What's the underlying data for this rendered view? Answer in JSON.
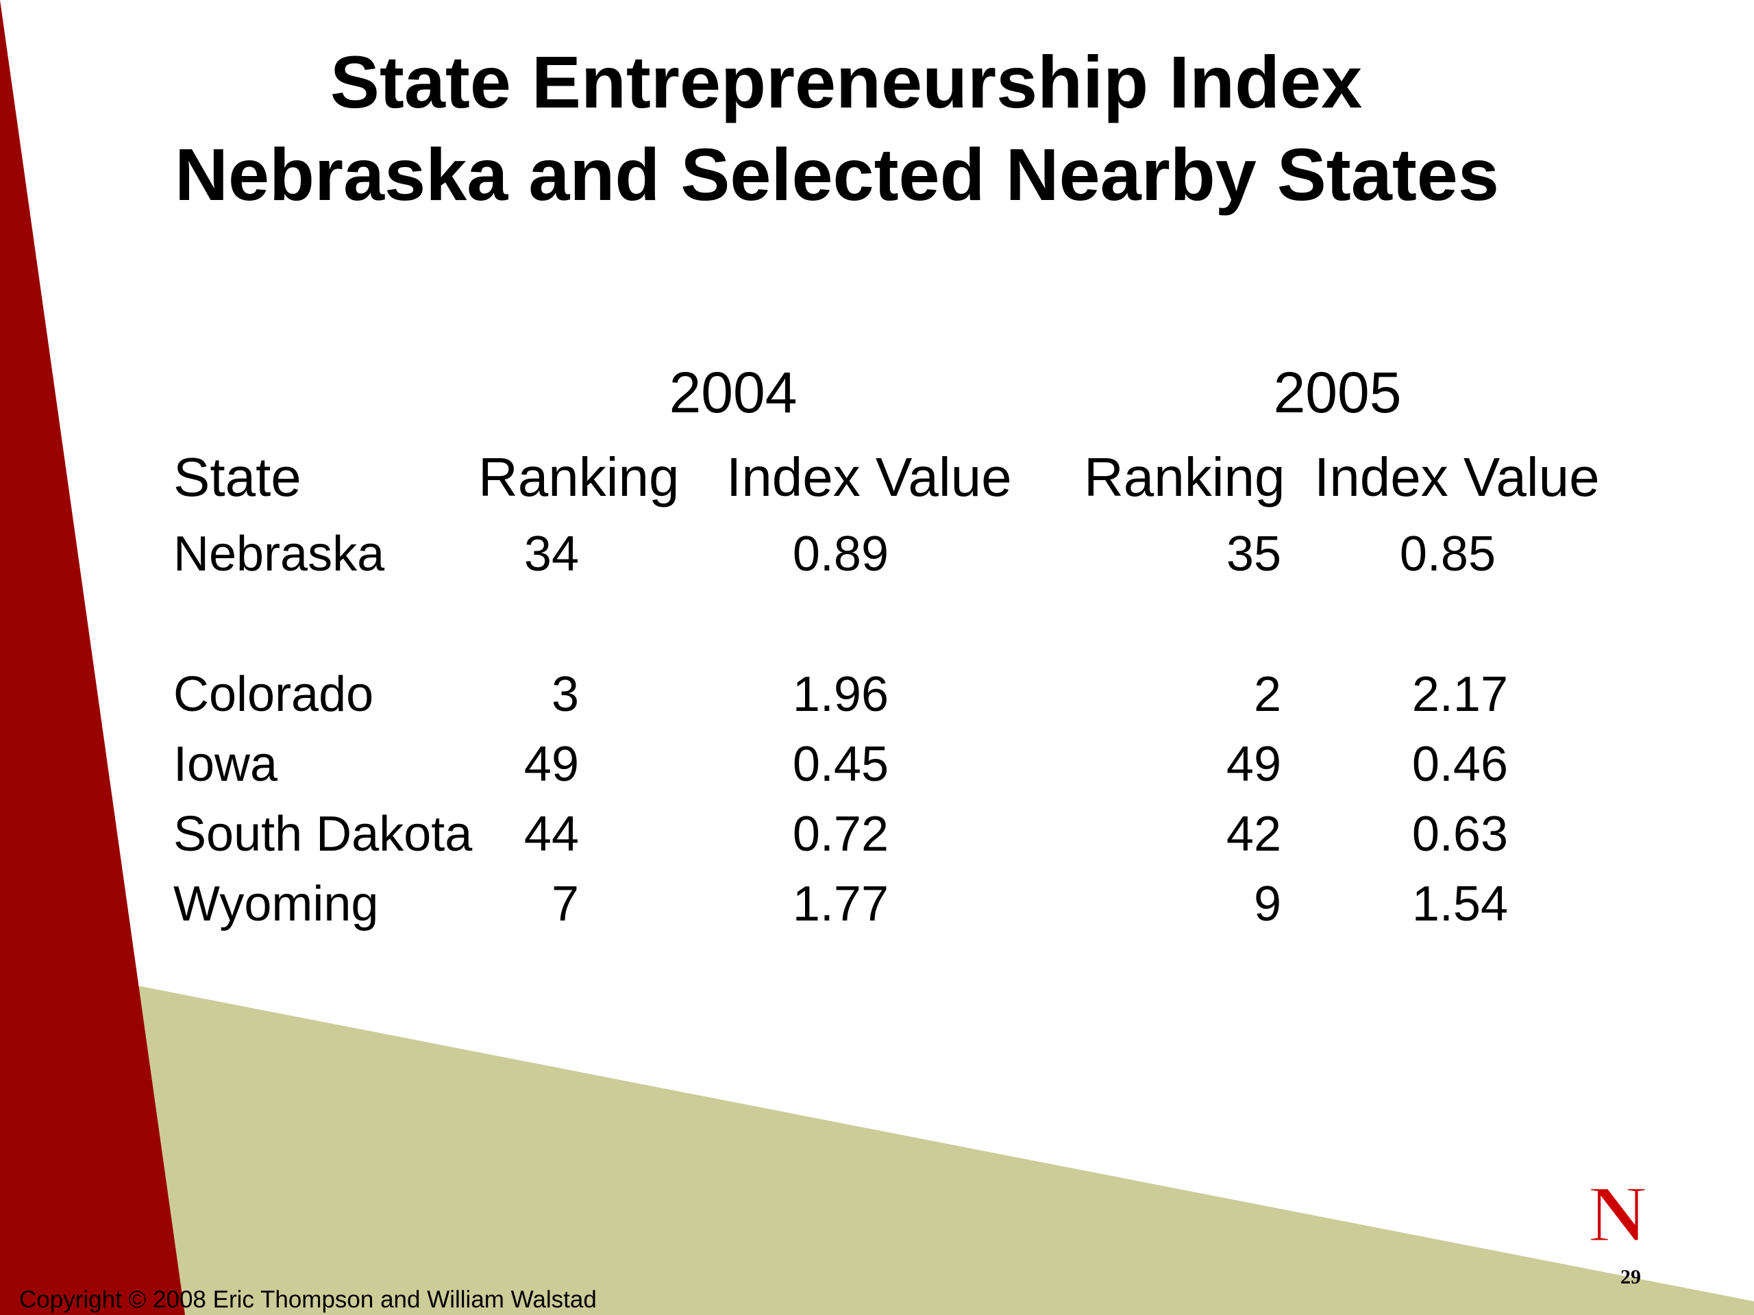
{
  "slide": {
    "title_line1": "State Entrepreneurship Index",
    "title_line2": "Nebraska and Selected Nearby States",
    "table": {
      "year_headers": [
        "2004",
        "2005"
      ],
      "column_headers": {
        "state": "State",
        "ranking_2004": "Ranking",
        "index_2004": "Index Value",
        "ranking_2005": "Ranking",
        "index_2005": "Index Value"
      },
      "rows": [
        {
          "state": "Nebraska",
          "ranking_2004": "34",
          "index_2004": "0.89",
          "ranking_2005": "35",
          "index_2005": "0.85"
        },
        {
          "state": "Colorado",
          "ranking_2004": "3",
          "index_2004": "1.96",
          "ranking_2005": "2",
          "index_2005": "2.17"
        },
        {
          "state": "Iowa",
          "ranking_2004": "49",
          "index_2004": "0.45",
          "ranking_2005": "49",
          "index_2005": "0.46"
        },
        {
          "state": "South Dakota",
          "ranking_2004": "44",
          "index_2004": "0.72",
          "ranking_2005": "42",
          "index_2005": "0.63"
        },
        {
          "state": "Wyoming",
          "ranking_2004": "7",
          "index_2004": "1.77",
          "ranking_2005": "9",
          "index_2005": "1.54"
        }
      ]
    },
    "copyright": "Copyright © 2008 Eric Thompson and William Walstad",
    "page_number": "29",
    "logo_letter": "N",
    "colors": {
      "red_band": "#990000",
      "olive_band": "#cccc99",
      "logo_red": "#cc0000",
      "text": "#000000"
    }
  }
}
